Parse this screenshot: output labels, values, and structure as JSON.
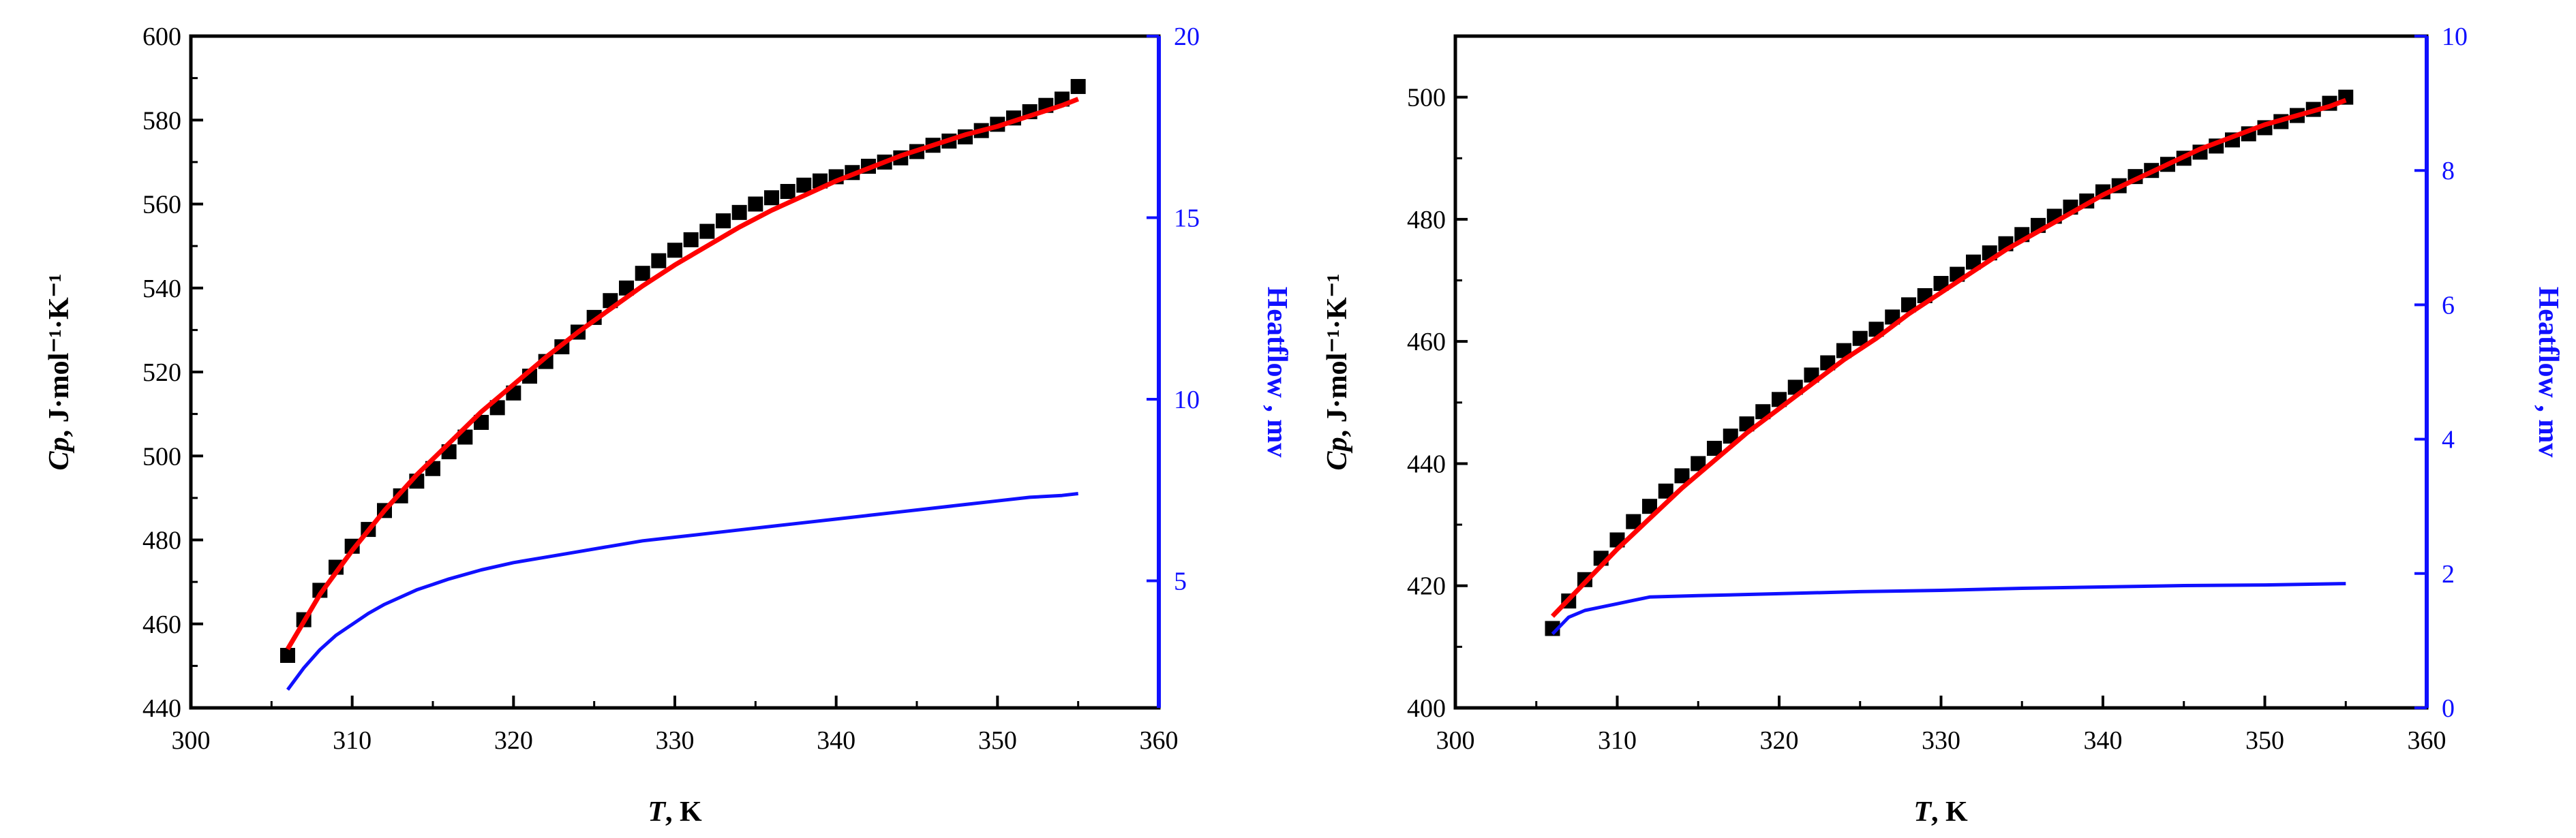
{
  "chart_data": [
    {
      "type": "scatter",
      "xlabel_italic": "T",
      "xlabel_rest": ", K",
      "ylabel_italic": "Cp",
      "ylabel_rest": ", J·mol⁻¹·K⁻¹",
      "y2label": "Heatflow , mv",
      "xlim": [
        300,
        360
      ],
      "ylim": [
        440,
        600
      ],
      "y2lim": [
        1.5,
        20
      ],
      "xticks": [
        "300",
        "310",
        "320",
        "330",
        "340",
        "350",
        "360"
      ],
      "yticks": [
        "440",
        "460",
        "480",
        "500",
        "520",
        "540",
        "560",
        "580",
        "600"
      ],
      "y2ticks": [
        "5",
        "10",
        "15",
        "20"
      ],
      "colors": {
        "points": "#000000",
        "fit": "#ff0000",
        "heatflow": "#1010ff",
        "y2axis": "#1010ff"
      },
      "series": [
        {
          "kind": "points",
          "x": [
            306,
            307,
            308,
            309,
            310,
            311,
            312,
            313,
            314,
            315,
            316,
            317,
            318,
            319,
            320,
            321,
            322,
            323,
            324,
            325,
            326,
            327,
            328,
            329,
            330,
            331,
            332,
            333,
            334,
            335,
            336,
            337,
            338,
            339,
            340,
            341,
            342,
            343,
            344,
            345,
            346,
            347,
            348,
            349,
            350,
            351,
            352,
            353,
            354,
            355
          ],
          "y": [
            452.5,
            461,
            468,
            473.5,
            478.5,
            482.5,
            487,
            490.5,
            494,
            497,
            501,
            504.5,
            508,
            511.5,
            515,
            519,
            522.5,
            526,
            529.5,
            533,
            537,
            540,
            543.5,
            546.5,
            549,
            551.5,
            553.5,
            556,
            558,
            560,
            561.5,
            563,
            564.5,
            565.5,
            566.5,
            567.5,
            569,
            570,
            571,
            572.5,
            574,
            575,
            576,
            577.5,
            579,
            580.5,
            582,
            583.5,
            585,
            588
          ]
        },
        {
          "kind": "fit",
          "x": [
            306,
            308,
            310,
            312,
            314,
            316,
            318,
            320,
            322,
            324,
            326,
            328,
            330,
            332,
            334,
            336,
            338,
            340,
            342,
            344,
            346,
            348,
            350,
            352,
            354,
            355
          ],
          "y": [
            454,
            467,
            477.5,
            487,
            495.5,
            503,
            510.5,
            517,
            523.5,
            529.5,
            535,
            540.5,
            545.5,
            550,
            554.5,
            558.5,
            562,
            565.5,
            568.5,
            571.5,
            574,
            576.5,
            578.5,
            581,
            583.5,
            585
          ]
        },
        {
          "kind": "heatflow",
          "x": [
            306,
            307,
            308,
            309,
            310,
            311,
            312,
            314,
            316,
            318,
            320,
            322,
            324,
            326,
            328,
            330,
            332,
            334,
            336,
            338,
            340,
            342,
            344,
            346,
            348,
            350,
            352,
            354,
            355
          ],
          "y": [
            2.0,
            2.6,
            3.1,
            3.5,
            3.8,
            4.1,
            4.35,
            4.75,
            5.05,
            5.3,
            5.5,
            5.65,
            5.8,
            5.95,
            6.1,
            6.2,
            6.3,
            6.4,
            6.5,
            6.6,
            6.7,
            6.8,
            6.9,
            7.0,
            7.1,
            7.2,
            7.3,
            7.35,
            7.4
          ]
        }
      ]
    },
    {
      "type": "scatter",
      "xlabel_italic": "T",
      "xlabel_rest": ", K",
      "ylabel_italic": "Cp",
      "ylabel_rest": ", J·mol⁻¹·K⁻¹",
      "y2label": "Heatflow , mv",
      "xlim": [
        300,
        360
      ],
      "ylim": [
        400,
        510
      ],
      "y2lim": [
        0,
        10
      ],
      "xticks": [
        "300",
        "310",
        "320",
        "330",
        "340",
        "350",
        "360"
      ],
      "yticks": [
        "400",
        "420",
        "440",
        "460",
        "480",
        "500"
      ],
      "y2ticks": [
        "0",
        "2",
        "4",
        "6",
        "8",
        "10"
      ],
      "colors": {
        "points": "#000000",
        "fit": "#ff0000",
        "heatflow": "#1010ff",
        "y2axis": "#1010ff"
      },
      "series": [
        {
          "kind": "points",
          "x": [
            306,
            307,
            308,
            309,
            310,
            311,
            312,
            313,
            314,
            315,
            316,
            317,
            318,
            319,
            320,
            321,
            322,
            323,
            324,
            325,
            326,
            327,
            328,
            329,
            330,
            331,
            332,
            333,
            334,
            335,
            336,
            337,
            338,
            339,
            340,
            341,
            342,
            343,
            344,
            345,
            346,
            347,
            348,
            349,
            350,
            351,
            352,
            353,
            354,
            355
          ],
          "y": [
            413,
            417.5,
            421,
            424.5,
            427.5,
            430.5,
            433,
            435.5,
            438,
            440,
            442.5,
            444.5,
            446.5,
            448.5,
            450.5,
            452.5,
            454.5,
            456.5,
            458.5,
            460.5,
            462,
            464,
            466,
            467.5,
            469.5,
            471,
            473,
            474.5,
            476,
            477.5,
            479,
            480.5,
            482,
            483,
            484.5,
            485.5,
            487,
            488,
            489,
            490,
            491,
            492,
            493,
            494,
            495,
            496,
            497,
            498,
            499,
            500
          ]
        },
        {
          "kind": "fit",
          "x": [
            306,
            308,
            310,
            312,
            314,
            316,
            318,
            320,
            322,
            324,
            326,
            328,
            330,
            332,
            334,
            336,
            338,
            340,
            342,
            344,
            346,
            348,
            350,
            352,
            354,
            355
          ],
          "y": [
            415,
            420.5,
            426,
            431,
            436,
            440.5,
            445,
            449,
            453,
            457,
            460.5,
            464.5,
            468,
            471.5,
            475,
            478,
            481,
            484,
            486.5,
            489,
            491.5,
            493.5,
            495.5,
            497,
            498.5,
            499.5
          ]
        },
        {
          "kind": "heatflow",
          "x": [
            306,
            307,
            308,
            309,
            310,
            311,
            312,
            315,
            320,
            325,
            330,
            335,
            340,
            345,
            350,
            355
          ],
          "y": [
            1.1,
            1.35,
            1.45,
            1.5,
            1.55,
            1.6,
            1.65,
            1.67,
            1.7,
            1.73,
            1.75,
            1.78,
            1.8,
            1.82,
            1.83,
            1.85
          ]
        }
      ]
    }
  ]
}
